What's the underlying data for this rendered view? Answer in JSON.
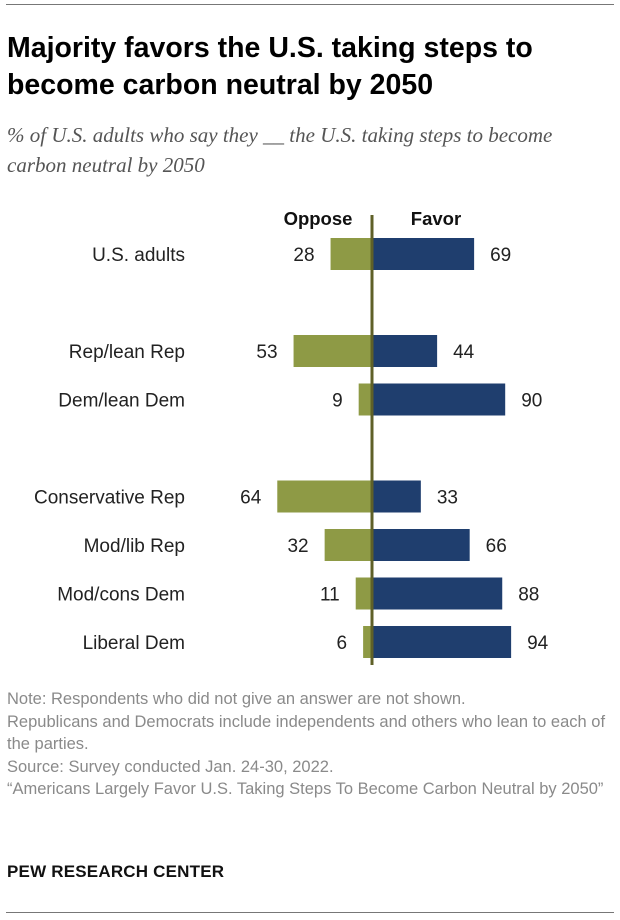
{
  "title": "Majority favors the U.S. taking steps to become carbon neutral by 2050",
  "subtitle": "% of U.S. adults who say they __ the U.S. taking steps to become carbon neutral by 2050",
  "colors": {
    "oppose": "#8e9a45",
    "favor": "#1f3e6e",
    "axis": "#5f6028"
  },
  "chart_data": {
    "type": "bar",
    "orientation": "horizontal-diverging",
    "series": [
      {
        "name": "Oppose",
        "values": [
          28,
          53,
          9,
          64,
          32,
          11,
          6
        ]
      },
      {
        "name": "Favor",
        "values": [
          69,
          44,
          90,
          33,
          66,
          88,
          94
        ]
      }
    ],
    "categories": [
      "U.S. adults",
      "Rep/lean Rep",
      "Dem/lean Dem",
      "Conservative Rep",
      "Mod/lib Rep",
      "Mod/cons Dem",
      "Liberal Dem"
    ],
    "groups": [
      [
        0
      ],
      [
        1,
        2
      ],
      [
        3,
        4,
        5,
        6
      ]
    ],
    "xlim": [
      0,
      100
    ]
  },
  "notes": [
    "Note: Respondents who did not give an answer are not shown.",
    "Republicans and Democrats include independents and others who lean to each of the parties.",
    "Source: Survey conducted Jan. 24-30, 2022.",
    "“Americans Largely Favor U.S. Taking Steps To Become Carbon Neutral by 2050”"
  ],
  "brand": "PEW RESEARCH CENTER"
}
